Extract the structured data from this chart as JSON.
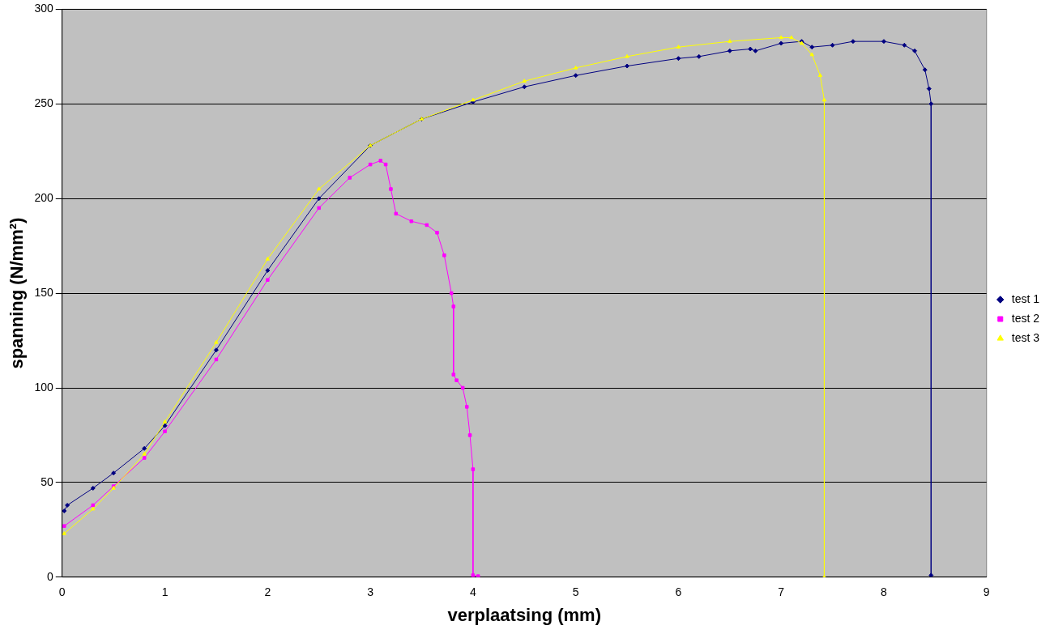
{
  "chart_data": {
    "type": "line",
    "xlabel": "verplaatsing (mm)",
    "ylabel": "spanning (N/mm²)",
    "xlim": [
      0,
      9
    ],
    "xticks": [
      0,
      1,
      2,
      3,
      4,
      5,
      6,
      7,
      8,
      9
    ],
    "ylim": [
      0,
      300
    ],
    "yticks": [
      0,
      50,
      100,
      150,
      200,
      250,
      300
    ],
    "grid": "y",
    "legend": "right",
    "line_style": "solid",
    "series": [
      {
        "name": "test 1",
        "color": "#000080",
        "marker": "diamond",
        "x": [
          0.02,
          0.05,
          0.3,
          0.5,
          0.8,
          1.0,
          1.5,
          2.0,
          2.5,
          3.0,
          3.5,
          4.0,
          4.5,
          5.0,
          5.5,
          6.0,
          6.2,
          6.5,
          6.7,
          6.75,
          7.0,
          7.2,
          7.3,
          7.5,
          7.7,
          8.0,
          8.2,
          8.3,
          8.4,
          8.44,
          8.46,
          8.46
        ],
        "values": [
          35,
          38,
          47,
          55,
          68,
          80,
          120,
          162,
          200,
          228,
          242,
          251,
          259,
          265,
          270,
          274,
          275,
          278,
          279,
          278,
          282,
          283,
          280,
          281,
          283,
          283,
          281,
          278,
          268,
          258,
          250,
          1
        ]
      },
      {
        "name": "test 2",
        "color": "#ff00ff",
        "marker": "square",
        "x": [
          0.02,
          0.3,
          0.5,
          0.8,
          1.0,
          1.5,
          2.0,
          2.5,
          2.8,
          3.0,
          3.1,
          3.15,
          3.2,
          3.25,
          3.4,
          3.55,
          3.65,
          3.72,
          3.79,
          3.81,
          3.81,
          3.84,
          3.9,
          3.94,
          3.97,
          4.0,
          4.0,
          4.05
        ],
        "values": [
          27,
          38,
          48,
          63,
          77,
          115,
          157,
          195,
          211,
          218,
          220,
          218,
          205,
          192,
          188,
          186,
          182,
          170,
          150,
          143,
          107,
          104,
          100,
          90,
          75,
          57,
          1,
          0.5
        ]
      },
      {
        "name": "test 3",
        "color": "#ffff00",
        "marker": "triangle",
        "x": [
          0.02,
          0.3,
          0.5,
          0.8,
          1.0,
          1.5,
          2.0,
          2.5,
          3.0,
          3.5,
          4.0,
          4.5,
          5.0,
          5.5,
          6.0,
          6.5,
          7.0,
          7.1,
          7.2,
          7.3,
          7.38,
          7.42,
          7.42
        ],
        "values": [
          23,
          36,
          47,
          65,
          82,
          124,
          168,
          205,
          228,
          242,
          252,
          262,
          269,
          275,
          280,
          283,
          285,
          285,
          282,
          276,
          265,
          252,
          0
        ]
      }
    ]
  }
}
